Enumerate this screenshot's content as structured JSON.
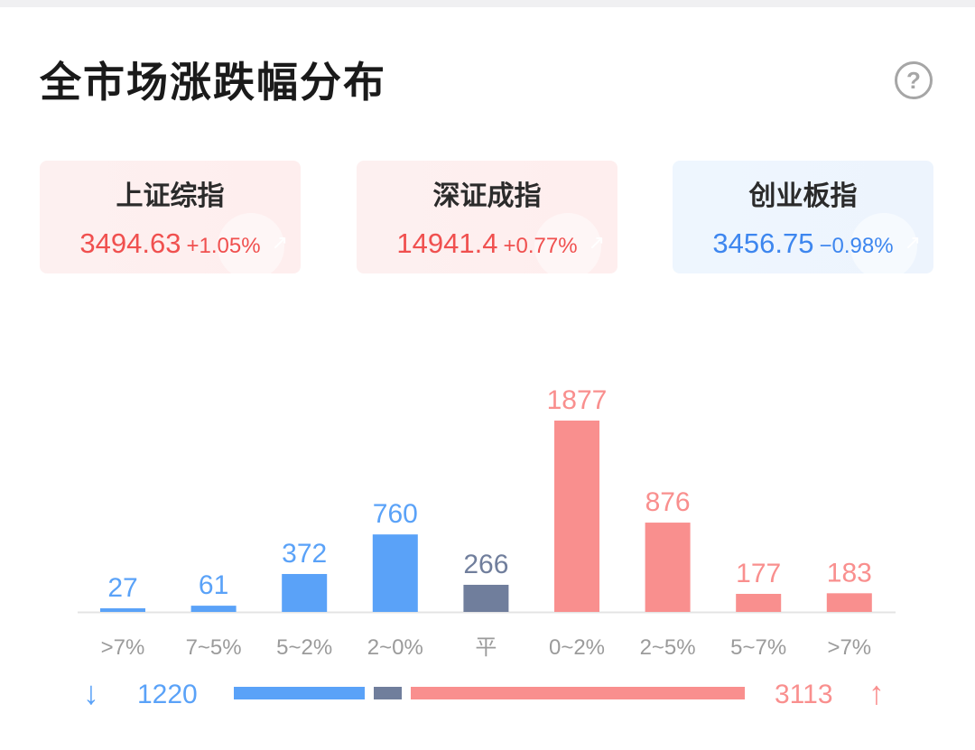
{
  "title": "全市场涨跌幅分布",
  "help_icon": "?",
  "colors": {
    "up": "#f98f8e",
    "down": "#5aa2f8",
    "flat": "#707e9c",
    "up_text": "#f0504f",
    "down_text": "#3d86ef"
  },
  "indices": [
    {
      "name": "上证综指",
      "price": "3494.63",
      "change": "+1.05%",
      "trend": "up"
    },
    {
      "name": "深证成指",
      "price": "14941.4",
      "change": "+0.77%",
      "trend": "up"
    },
    {
      "name": "创业板指",
      "price": "3456.75",
      "change": "−0.98%",
      "trend": "down"
    }
  ],
  "chart_data": {
    "type": "bar",
    "categories": [
      ">7%",
      "7~5%",
      "5~2%",
      "2~0%",
      "平",
      "0~2%",
      "2~5%",
      "5~7%",
      ">7%"
    ],
    "values": [
      27,
      61,
      372,
      760,
      266,
      1877,
      876,
      177,
      183
    ],
    "groups": [
      "down",
      "down",
      "down",
      "down",
      "flat",
      "up",
      "up",
      "up",
      "up"
    ],
    "ylim": [
      0,
      1877
    ],
    "grid": false
  },
  "summary": {
    "down_total": "1220",
    "up_total": "3113",
    "down_icon": "arrow-down-icon",
    "up_icon": "arrow-up-icon"
  }
}
